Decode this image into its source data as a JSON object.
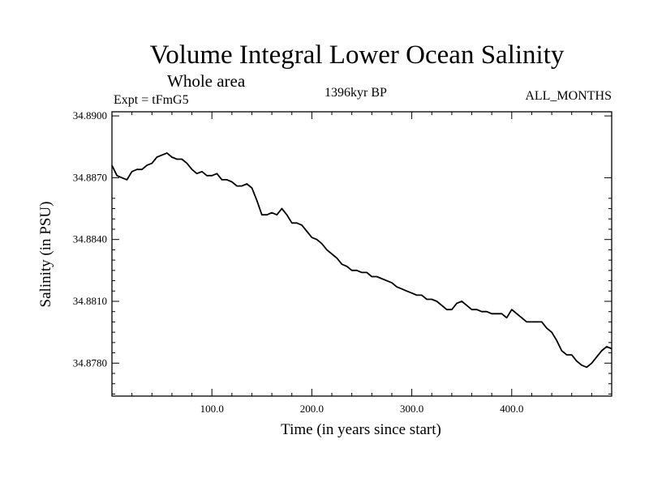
{
  "chart_data": {
    "type": "line",
    "title": "Volume Integral Lower Ocean Salinity",
    "subtitle": "Whole area",
    "experiment_label": "Expt = tFmG5",
    "center_label": "1396kyr BP",
    "right_label": "ALL_MONTHS",
    "xlabel": "Time (in years since start)",
    "ylabel": "Salinity (in PSU)",
    "xlim": [
      0,
      500
    ],
    "ylim": [
      34.8764,
      34.8902
    ],
    "x_tick_labels": [
      "100.0",
      "200.0",
      "300.0",
      "400.0"
    ],
    "x_ticks": [
      100,
      200,
      300,
      400
    ],
    "y_tick_labels": [
      "34.8780",
      "34.8810",
      "34.8840",
      "34.8870",
      "34.8900"
    ],
    "y_ticks": [
      34.878,
      34.881,
      34.884,
      34.887,
      34.89
    ],
    "grid": false,
    "series": [
      {
        "name": "Salinity",
        "x": [
          0,
          5,
          10,
          15,
          20,
          25,
          30,
          35,
          40,
          45,
          50,
          55,
          60,
          65,
          70,
          75,
          80,
          85,
          90,
          95,
          100,
          105,
          110,
          115,
          120,
          125,
          130,
          135,
          140,
          145,
          150,
          155,
          160,
          165,
          170,
          175,
          180,
          185,
          190,
          195,
          200,
          205,
          210,
          215,
          220,
          225,
          230,
          235,
          240,
          245,
          250,
          255,
          260,
          265,
          270,
          275,
          280,
          285,
          290,
          295,
          300,
          305,
          310,
          315,
          320,
          325,
          330,
          335,
          340,
          345,
          350,
          355,
          360,
          365,
          370,
          375,
          380,
          385,
          390,
          395,
          400,
          405,
          410,
          415,
          420,
          425,
          430,
          435,
          440,
          445,
          450,
          455,
          460,
          465,
          470,
          475,
          480,
          485,
          490,
          495,
          500
        ],
        "values": [
          34.8876,
          34.8871,
          34.887,
          34.8869,
          34.8873,
          34.8874,
          34.8874,
          34.8876,
          34.8877,
          34.888,
          34.8881,
          34.8882,
          34.888,
          34.8879,
          34.8879,
          34.8877,
          34.8874,
          34.8872,
          34.8873,
          34.8871,
          34.8871,
          34.8872,
          34.8869,
          34.8869,
          34.8868,
          34.8866,
          34.8866,
          34.8867,
          34.8865,
          34.8859,
          34.8852,
          34.8852,
          34.8853,
          34.8852,
          34.8855,
          34.8852,
          34.8848,
          34.8848,
          34.8847,
          34.8844,
          34.8841,
          34.884,
          34.8838,
          34.8835,
          34.8833,
          34.8831,
          34.8828,
          34.8827,
          34.8825,
          34.8825,
          34.8824,
          34.8824,
          34.8822,
          34.8822,
          34.8821,
          34.882,
          34.8819,
          34.8817,
          34.8816,
          34.8815,
          34.8814,
          34.8813,
          34.8813,
          34.8811,
          34.8811,
          34.881,
          34.8808,
          34.8806,
          34.8806,
          34.8809,
          34.881,
          34.8808,
          34.8806,
          34.8806,
          34.8805,
          34.8805,
          34.8804,
          34.8804,
          34.8804,
          34.8802,
          34.8806,
          34.8804,
          34.8802,
          34.88,
          34.88,
          34.88,
          34.88,
          34.8797,
          34.8795,
          34.8791,
          34.8786,
          34.8784,
          34.8784,
          34.8781,
          34.8779,
          34.8778,
          34.878,
          34.8783,
          34.8786,
          34.8788,
          34.8787
        ]
      }
    ]
  }
}
